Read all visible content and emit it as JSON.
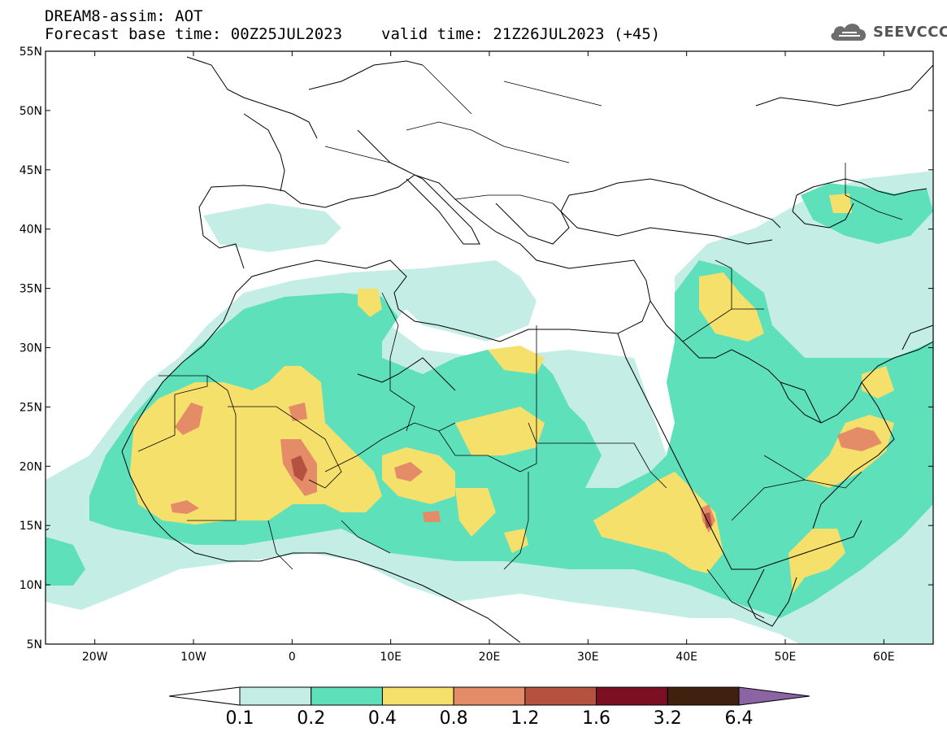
{
  "title": {
    "line1": "DREAM8-assim: AOT",
    "forecast_base": "Forecast base time: 00Z25JUL2023",
    "valid_time": "valid time: 21Z26JUL2023 (+45)"
  },
  "logo": {
    "text": "SEEVCCC",
    "icon": "cloud-icon"
  },
  "map": {
    "lon_range": [
      -25,
      65
    ],
    "lat_range": [
      5,
      55
    ],
    "lat_ticks": [
      "55N",
      "50N",
      "45N",
      "40N",
      "35N",
      "30N",
      "25N",
      "20N",
      "15N",
      "10N",
      "5N"
    ],
    "lon_ticks": [
      "20W",
      "10W",
      "0",
      "10E",
      "20E",
      "30E",
      "40E",
      "50E",
      "60E"
    ]
  },
  "colorbar": {
    "labels": [
      "0.1",
      "0.2",
      "0.4",
      "0.8",
      "1.2",
      "1.6",
      "3.2",
      "6.4"
    ],
    "colors": [
      "#ffffff",
      "#c4ede6",
      "#5ee0bb",
      "#f6e06c",
      "#e48c68",
      "#b4513f",
      "#7c0f22",
      "#40200f",
      "#8c64a4"
    ]
  },
  "colors": {
    "c1": "#c4ede6",
    "c2": "#5ee0bb",
    "c3": "#f6e06c",
    "c4": "#e48c68",
    "c5": "#b4513f",
    "c6": "#7c0f22"
  }
}
